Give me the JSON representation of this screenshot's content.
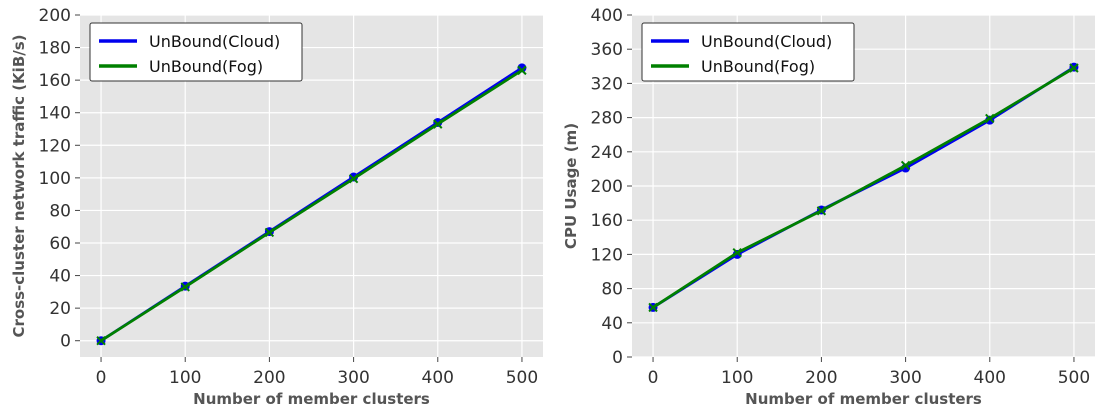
{
  "chart_data": [
    {
      "type": "line",
      "title": "",
      "xlabel": "Number of member clusters",
      "ylabel": "Cross-cluster network traffic (KiB/s)",
      "xlim": [
        -25,
        525
      ],
      "ylim": [
        -10,
        200
      ],
      "xticks": [
        0,
        100,
        200,
        300,
        400,
        500
      ],
      "yticks": [
        0,
        20,
        40,
        60,
        80,
        100,
        120,
        140,
        160,
        180,
        200
      ],
      "grid": true,
      "legend_position": "top-left",
      "x": [
        0,
        100,
        200,
        300,
        400,
        500
      ],
      "series": [
        {
          "name": "UnBound(Cloud)",
          "color": "#0000ee",
          "marker": "circle",
          "values": [
            0,
            33.5,
            67,
            100.5,
            134,
            167.5
          ]
        },
        {
          "name": "UnBound(Fog)",
          "color": "#008000",
          "marker": "x",
          "values": [
            0,
            33,
            66.5,
            99.5,
            133,
            166
          ]
        }
      ]
    },
    {
      "type": "line",
      "title": "",
      "xlabel": "Number of member clusters",
      "ylabel": "CPU Usage (m)",
      "xlim": [
        -25,
        525
      ],
      "ylim": [
        0,
        400
      ],
      "xticks": [
        0,
        100,
        200,
        300,
        400,
        500
      ],
      "yticks": [
        0,
        40,
        80,
        120,
        160,
        200,
        240,
        280,
        320,
        360,
        400
      ],
      "grid": true,
      "legend_position": "top-left",
      "x": [
        0,
        100,
        200,
        300,
        400,
        500
      ],
      "series": [
        {
          "name": "UnBound(Cloud)",
          "color": "#0000ee",
          "marker": "circle",
          "values": [
            58,
            120,
            172,
            221,
            277,
            339
          ]
        },
        {
          "name": "UnBound(Fog)",
          "color": "#008000",
          "marker": "x",
          "values": [
            58,
            122,
            171,
            224,
            279,
            338
          ]
        }
      ]
    }
  ]
}
